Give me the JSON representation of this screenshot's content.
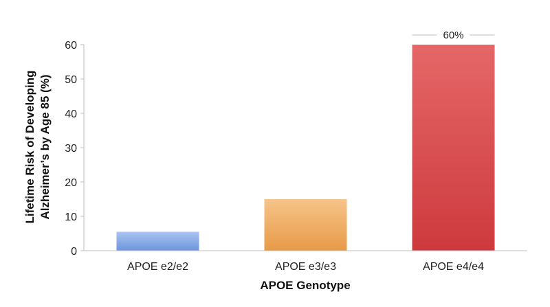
{
  "chart_data": {
    "type": "bar",
    "categories": [
      "APOE e2/e2",
      "APOE e3/e3",
      "APOE e4/e4"
    ],
    "values": [
      5.5,
      15,
      60
    ],
    "data_labels": [
      "",
      "",
      "60%"
    ],
    "title": "",
    "xlabel": "APOE Genotype",
    "ylabel_lines": [
      "Lifetime Risk of Developing",
      "Alzheimer’s by Age 85 (%)"
    ],
    "ylim": [
      0,
      60
    ],
    "yticks": [
      0,
      10,
      20,
      30,
      40,
      50,
      60
    ],
    "grid": false,
    "legend": "none",
    "colors": {
      "APOE e2/e2": [
        "#a9c4f0",
        "#6d95dc"
      ],
      "APOE e3/e3": [
        "#f6c489",
        "#e79a48"
      ],
      "APOE e4/e4": [
        "#e56767",
        "#cd3a3e"
      ]
    },
    "axis_color": "#bdbdbd",
    "label_line_color": "#bdbdbd"
  }
}
